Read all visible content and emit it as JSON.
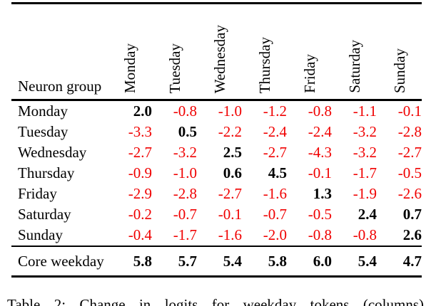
{
  "table": {
    "row_header": "Neuron group",
    "columns": [
      "Monday",
      "Tuesday",
      "Wednesday",
      "Thursday",
      "Friday",
      "Saturday",
      "Sunday"
    ],
    "rows": [
      {
        "label": "Monday",
        "values": [
          "2.0",
          "-0.8",
          "-1.0",
          "-1.2",
          "-0.8",
          "-1.1",
          "-0.1"
        ]
      },
      {
        "label": "Tuesday",
        "values": [
          "-3.3",
          "0.5",
          "-2.2",
          "-2.4",
          "-2.4",
          "-3.2",
          "-2.8"
        ]
      },
      {
        "label": "Wednesday",
        "values": [
          "-2.7",
          "-3.2",
          "2.5",
          "-2.7",
          "-4.3",
          "-3.2",
          "-2.7"
        ]
      },
      {
        "label": "Thursday",
        "values": [
          "-0.9",
          "-1.0",
          "0.6",
          "4.5",
          "-0.1",
          "-1.7",
          "-0.5"
        ]
      },
      {
        "label": "Friday",
        "values": [
          "-2.9",
          "-2.8",
          "-2.7",
          "-1.6",
          "1.3",
          "-1.9",
          "-2.6"
        ]
      },
      {
        "label": "Saturday",
        "values": [
          "-0.2",
          "-0.7",
          "-0.1",
          "-0.7",
          "-0.5",
          "2.4",
          "0.7"
        ]
      },
      {
        "label": "Sunday",
        "values": [
          "-0.4",
          "-1.7",
          "-1.6",
          "-2.0",
          "-0.8",
          "-0.8",
          "2.6"
        ]
      }
    ],
    "footer": {
      "label": "Core weekday",
      "values": [
        "5.8",
        "5.7",
        "5.4",
        "5.8",
        "6.0",
        "5.4",
        "4.7"
      ]
    }
  },
  "caption": "Table 2: Change in logits for weekday tokens (columns)",
  "colors": {
    "negative": "#f00000",
    "positive": "#000000"
  }
}
